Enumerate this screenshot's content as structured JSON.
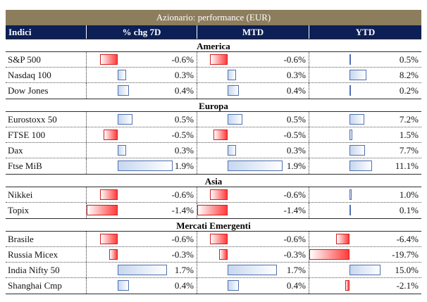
{
  "title": "Azionario: performance (EUR)",
  "columns": [
    "Indici",
    "% chg 7D",
    "MTD",
    "YTD"
  ],
  "groups": [
    {
      "name": "America",
      "rows": [
        {
          "label": "S&P 500",
          "d7": -0.6,
          "d7_text": "-0.6%",
          "mtd": -0.6,
          "mtd_text": "-0.6%",
          "ytd": 0.5,
          "ytd_text": "0.5%"
        },
        {
          "label": "Nasdaq 100",
          "d7": 0.3,
          "d7_text": "0.3%",
          "mtd": 0.3,
          "mtd_text": "0.3%",
          "ytd": 8.2,
          "ytd_text": "8.2%"
        },
        {
          "label": "Dow Jones",
          "d7": 0.4,
          "d7_text": "0.4%",
          "mtd": 0.4,
          "mtd_text": "0.4%",
          "ytd": 0.2,
          "ytd_text": "0.2%"
        }
      ]
    },
    {
      "name": "Europa",
      "rows": [
        {
          "label": "Eurostoxx 50",
          "d7": 0.5,
          "d7_text": "0.5%",
          "mtd": 0.5,
          "mtd_text": "0.5%",
          "ytd": 7.2,
          "ytd_text": "7.2%"
        },
        {
          "label": "FTSE 100",
          "d7": -0.5,
          "d7_text": "-0.5%",
          "mtd": -0.5,
          "mtd_text": "-0.5%",
          "ytd": 1.5,
          "ytd_text": "1.5%"
        },
        {
          "label": "Dax",
          "d7": 0.3,
          "d7_text": "0.3%",
          "mtd": 0.3,
          "mtd_text": "0.3%",
          "ytd": 7.7,
          "ytd_text": "7.7%"
        },
        {
          "label": "Ftse MiB",
          "d7": 1.9,
          "d7_text": "1.9%",
          "mtd": 1.9,
          "mtd_text": "1.9%",
          "ytd": 11.1,
          "ytd_text": "11.1%"
        }
      ]
    },
    {
      "name": "Asia",
      "rows": [
        {
          "label": "Nikkei",
          "d7": -0.6,
          "d7_text": "-0.6%",
          "mtd": -0.6,
          "mtd_text": "-0.6%",
          "ytd": 1.0,
          "ytd_text": "1.0%"
        },
        {
          "label": "Topix",
          "d7": -1.4,
          "d7_text": "-1.4%",
          "mtd": -1.4,
          "mtd_text": "-1.4%",
          "ytd": 0.1,
          "ytd_text": "0.1%"
        }
      ]
    },
    {
      "name": "Mercati Emergenti",
      "rows": [
        {
          "label": "Brasile",
          "d7": -0.6,
          "d7_text": "-0.6%",
          "mtd": -0.6,
          "mtd_text": "-0.6%",
          "ytd": -6.4,
          "ytd_text": "-6.4%"
        },
        {
          "label": "Russia Micex",
          "d7": -0.3,
          "d7_text": "-0.3%",
          "mtd": -0.3,
          "mtd_text": "-0.3%",
          "ytd": -19.7,
          "ytd_text": "-19.7%"
        },
        {
          "label": "India Nifty 50",
          "d7": 1.7,
          "d7_text": "1.7%",
          "mtd": 1.7,
          "mtd_text": "1.7%",
          "ytd": 15.0,
          "ytd_text": "15.0%"
        },
        {
          "label": "Shanghai Cmp",
          "d7": 0.4,
          "d7_text": "0.4%",
          "mtd": 0.4,
          "mtd_text": "0.4%",
          "ytd": -2.1,
          "ytd_text": "-2.1%"
        }
      ]
    }
  ],
  "colors": {
    "title_bg": "#8c7d5d",
    "header_bg": "#0c1f56",
    "positive_bar": "#c6d7ef",
    "negative_bar": "#ff3b3b"
  }
}
